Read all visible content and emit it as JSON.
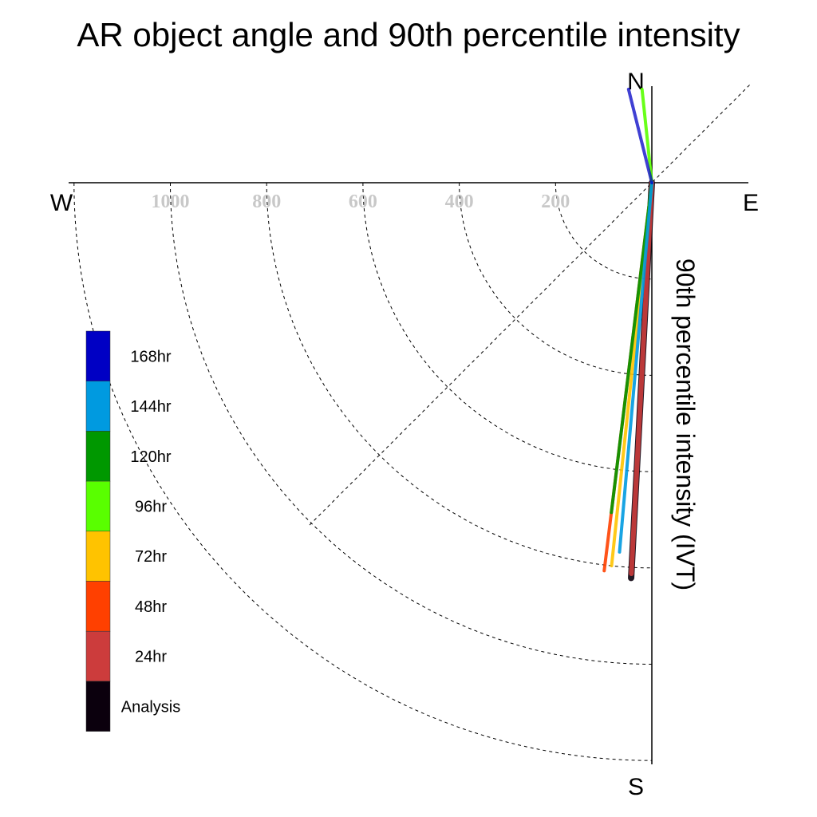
{
  "chart_data": {
    "type": "line",
    "title": "AR object angle and 90th percentile intensity",
    "ylabel": "90th percentile intensity (IVT)",
    "compass": {
      "north": "N",
      "south": "S",
      "east": "E",
      "west": "W"
    },
    "radial_ticks": [
      200,
      400,
      600,
      800,
      1000
    ],
    "radial_tick_labels": [
      "200",
      "400",
      "600",
      "800",
      "1000"
    ],
    "rmax": 1200,
    "grid": true,
    "legend_position": "left",
    "series": [
      {
        "name": "168hr",
        "color": "#0000c4",
        "angle_deg": 346,
        "intensity": 200
      },
      {
        "name": "144hr",
        "color": "#009ae0",
        "angle_deg": 185,
        "intensity": 770
      },
      {
        "name": "120hr",
        "color": "#009800",
        "angle_deg": 187,
        "intensity": 690
      },
      {
        "name": "96hr",
        "color": "#59ff00",
        "angle_deg": 354,
        "intensity": 195
      },
      {
        "name": "72hr",
        "color": "#ffc300",
        "angle_deg": 186,
        "intensity": 800
      },
      {
        "name": "48hr",
        "color": "#ff4000",
        "angle_deg": 187,
        "intensity": 812
      },
      {
        "name": "24hr",
        "color": "#cc3c3c",
        "angle_deg": 183,
        "intensity": 813
      },
      {
        "name": "Analysis",
        "color": "#0b000d",
        "angle_deg": 183,
        "intensity": 822
      }
    ]
  }
}
